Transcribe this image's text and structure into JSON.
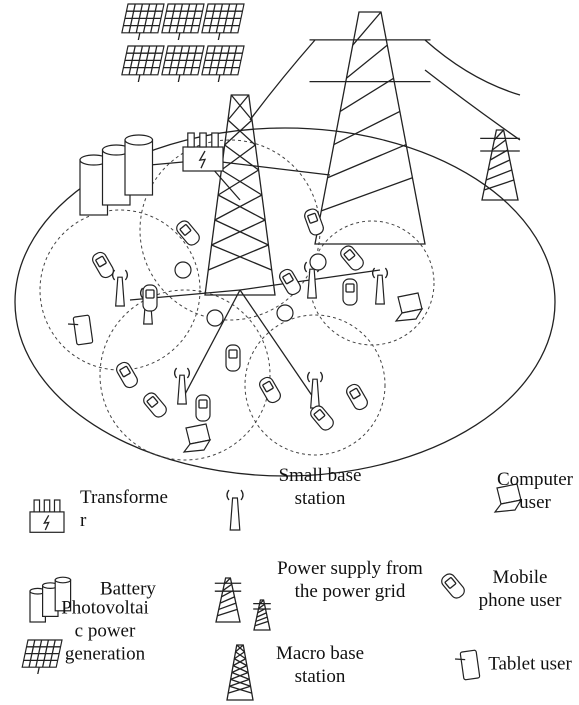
{
  "legend": {
    "items": [
      {
        "icon": "transformer",
        "lines": [
          "Transforme",
          "r"
        ]
      },
      {
        "icon": "small-base-station",
        "lines": [
          "Small base",
          "station"
        ]
      },
      {
        "icon": "computer",
        "lines": [
          "Computer",
          "user"
        ]
      },
      {
        "icon": "battery",
        "lines": [
          "Battery"
        ]
      },
      {
        "icon": "power-grid",
        "lines": [
          "Power supply from",
          "the power grid"
        ]
      },
      {
        "icon": "phone",
        "lines": [
          "Mobile",
          "phone user"
        ]
      },
      {
        "icon": "solar",
        "lines": [
          "Photovoltai",
          "c power",
          "generation"
        ]
      },
      {
        "icon": "macro-base-station",
        "lines": [
          "Macro base",
          "station"
        ]
      },
      {
        "icon": "tablet",
        "lines": [
          "Tablet user"
        ]
      }
    ]
  }
}
